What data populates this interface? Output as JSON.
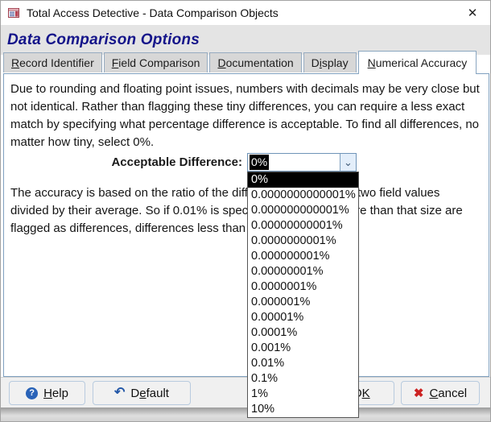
{
  "window": {
    "title": "Total Access Detective - Data Comparison Objects"
  },
  "header": {
    "title": "Data Comparison Options"
  },
  "tabs": [
    {
      "label": "Record Identifier",
      "underline_index": 0,
      "active": false
    },
    {
      "label": "Field Comparison",
      "underline_index": 0,
      "active": false
    },
    {
      "label": "Documentation",
      "underline_index": 0,
      "active": false
    },
    {
      "label": "Display",
      "underline_index": 1,
      "active": false
    },
    {
      "label": "Numerical Accuracy",
      "underline_index": 0,
      "active": true
    }
  ],
  "panel": {
    "intro": "Due to rounding and floating point issues, numbers with decimals may be very close but not identical. Rather than flagging these tiny differences, you can require a less exact match by specifying what percentage difference is acceptable. To find all differences, no matter how tiny, select 0%.",
    "field_label": "Acceptable Difference:",
    "detail": "The accuracy is based on the ratio of the difference between the two field values divided by their average. So if 0.01% is specified, differences more than that size are flagged as differences, differences less than 0.01% are ignored."
  },
  "dropdown": {
    "value": "0%",
    "selected_index": 0,
    "items": [
      "0%",
      "0.0000000000001%",
      "0.000000000001%",
      "0.00000000001%",
      "0.0000000001%",
      "0.000000001%",
      "0.00000001%",
      "0.0000001%",
      "0.000001%",
      "0.00001%",
      "0.0001%",
      "0.001%",
      "0.01%",
      "0.1%",
      "1%",
      "10%"
    ]
  },
  "buttons": {
    "help": {
      "label": "Help",
      "underline_index": 0
    },
    "default": {
      "label": "Default",
      "underline_index": 1
    },
    "ok": {
      "label": "OK",
      "underline_index": 1
    },
    "cancel": {
      "label": "Cancel",
      "underline_index": 0
    }
  },
  "icons": {
    "close": "✕",
    "chevron": "⌄",
    "help": "?",
    "default": "↶",
    "ok": "✔",
    "cancel": "✖"
  },
  "colors": {
    "heading_text": "#15158a",
    "selection_bg": "#000000",
    "selection_fg": "#ffffff",
    "tab_border": "#96abc0",
    "pane_border": "#7fa0bf",
    "cancel_red": "#cc2222",
    "ok_green": "#2e8b2e",
    "help_blue": "#2a63b8"
  }
}
